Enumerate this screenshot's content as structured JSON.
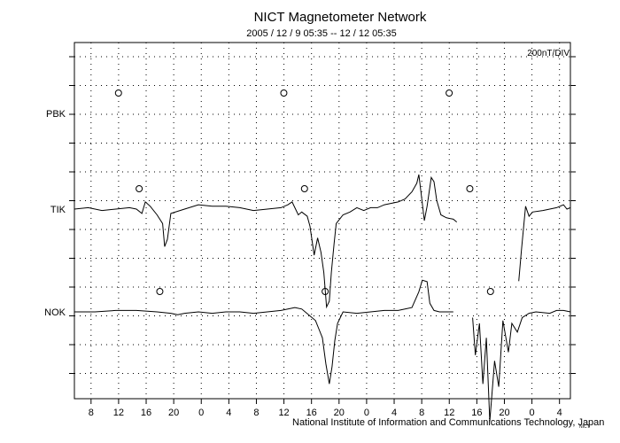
{
  "chart_data": {
    "type": "line",
    "title": "NICT Magnetometer Network",
    "subtitle": "2005 / 12 /  9   05:35 -- 12 / 12   05:35",
    "scale_label": "200nT/DIV",
    "credit": "National Institute of Information and Communications Technology, Japan",
    "credit_mark": "NICT",
    "x_tick_labels": [
      "8",
      "12",
      "16",
      "20",
      "0",
      "4",
      "8",
      "12",
      "16",
      "20",
      "0",
      "4",
      "8",
      "12",
      "16",
      "20",
      "0",
      "4"
    ],
    "x_range_hours": [
      0,
      72
    ],
    "x_start_hour_of_day": 5.583,
    "grid": true,
    "stations": [
      {
        "name": "PBK",
        "noon_markers_hour": [
          6.4,
          30.4,
          54.4
        ],
        "segments": []
      },
      {
        "name": "TIK",
        "noon_markers_hour": [
          9.4,
          33.4,
          57.4
        ],
        "segments": [
          [
            [
              0,
              0
            ],
            [
              2,
              0.05
            ],
            [
              4,
              -0.05
            ],
            [
              6,
              0
            ],
            [
              8,
              0.05
            ],
            [
              9,
              0
            ],
            [
              9.8,
              -0.15
            ],
            [
              10.3,
              0.25
            ],
            [
              11,
              0.1
            ],
            [
              12,
              -0.2
            ],
            [
              12.8,
              -0.5
            ],
            [
              13.1,
              -1.3
            ],
            [
              13.5,
              -1.05
            ],
            [
              14,
              -0.15
            ],
            [
              16,
              0
            ],
            [
              18,
              0.15
            ],
            [
              20,
              0.1
            ],
            [
              22,
              0.1
            ],
            [
              24,
              0.05
            ],
            [
              26,
              -0.05
            ],
            [
              28,
              0
            ],
            [
              30,
              0.05
            ],
            [
              31,
              0.15
            ],
            [
              31.6,
              0.25
            ],
            [
              32,
              0.05
            ],
            [
              32.5,
              -0.2
            ],
            [
              33,
              -0.1
            ],
            [
              33.8,
              -0.25
            ],
            [
              34.2,
              -0.6
            ],
            [
              34.8,
              -1.6
            ],
            [
              35.3,
              -1.0
            ],
            [
              35.8,
              -1.5
            ],
            [
              36.2,
              -2.2
            ],
            [
              36.6,
              -3.4
            ],
            [
              37,
              -3.2
            ],
            [
              37.3,
              -2.2
            ],
            [
              37.7,
              -1.2
            ],
            [
              38,
              -0.5
            ],
            [
              38.5,
              -0.35
            ],
            [
              39,
              -0.2
            ],
            [
              40,
              -0.1
            ],
            [
              41,
              0.05
            ],
            [
              42,
              -0.05
            ],
            [
              43,
              0.05
            ],
            [
              44,
              0.05
            ],
            [
              45,
              0.15
            ],
            [
              46,
              0.2
            ],
            [
              47,
              0.25
            ],
            [
              48,
              0.35
            ],
            [
              49,
              0.6
            ],
            [
              49.7,
              0.9
            ],
            [
              50,
              1.2
            ],
            [
              50.5,
              0.2
            ],
            [
              50.8,
              -0.4
            ],
            [
              51.2,
              0.1
            ],
            [
              51.8,
              1.1
            ],
            [
              52.2,
              0.95
            ],
            [
              52.6,
              0.3
            ],
            [
              53.2,
              -0.2
            ],
            [
              54,
              -0.3
            ],
            [
              55,
              -0.35
            ],
            [
              55.5,
              -0.45
            ]
          ],
          [
            [
              64.5,
              -2.5
            ],
            [
              64.9,
              -1.4
            ],
            [
              65.5,
              0.1
            ],
            [
              66,
              -0.25
            ],
            [
              66.5,
              -0.1
            ],
            [
              68,
              -0.05
            ],
            [
              70,
              0.05
            ],
            [
              71,
              0.15
            ],
            [
              71.5,
              0
            ],
            [
              72,
              0.05
            ]
          ]
        ]
      },
      {
        "name": "NOK",
        "noon_markers_hour": [
          12.4,
          36.4,
          60.4
        ],
        "segments": [
          [
            [
              0,
              0
            ],
            [
              3,
              0
            ],
            [
              6,
              0.05
            ],
            [
              9,
              0.05
            ],
            [
              12,
              0
            ],
            [
              14,
              -0.05
            ],
            [
              15,
              -0.1
            ],
            [
              16,
              -0.05
            ],
            [
              18,
              0
            ],
            [
              20,
              -0.05
            ],
            [
              22,
              0
            ],
            [
              24,
              0
            ],
            [
              26,
              -0.05
            ],
            [
              28,
              0
            ],
            [
              30,
              0.05
            ],
            [
              32,
              0.15
            ],
            [
              33,
              0.1
            ],
            [
              34,
              -0.1
            ],
            [
              35,
              -0.3
            ],
            [
              35.5,
              -0.6
            ],
            [
              36,
              -0.9
            ],
            [
              36.5,
              -1.8
            ],
            [
              37,
              -2.5
            ],
            [
              37.4,
              -1.9
            ],
            [
              37.8,
              -1.0
            ],
            [
              38.2,
              -0.4
            ],
            [
              38.6,
              -0.2
            ],
            [
              39,
              0
            ],
            [
              41,
              -0.05
            ],
            [
              43,
              0
            ],
            [
              45,
              0.05
            ],
            [
              47,
              0.05
            ],
            [
              48,
              0.1
            ],
            [
              49,
              0.15
            ],
            [
              50,
              0.7
            ],
            [
              50.5,
              1.1
            ],
            [
              51.2,
              1.05
            ],
            [
              51.6,
              0.3
            ],
            [
              52.2,
              0.05
            ],
            [
              53,
              0
            ],
            [
              54,
              0
            ],
            [
              55,
              0
            ]
          ],
          [
            [
              57.8,
              -0.2
            ],
            [
              58.2,
              -1.5
            ],
            [
              58.8,
              -0.4
            ],
            [
              59.3,
              -2.5
            ],
            [
              59.8,
              -0.9
            ],
            [
              60.3,
              -3.8
            ],
            [
              61,
              -1.7
            ],
            [
              61.6,
              -2.6
            ],
            [
              62.2,
              -0.3
            ],
            [
              63,
              -1.4
            ],
            [
              63.5,
              -0.4
            ],
            [
              64.3,
              -0.7
            ],
            [
              65,
              -0.2
            ],
            [
              66,
              -0.05
            ],
            [
              67,
              0
            ],
            [
              69,
              -0.05
            ],
            [
              70,
              0.05
            ],
            [
              71,
              0.05
            ],
            [
              72,
              0
            ]
          ]
        ]
      }
    ]
  }
}
